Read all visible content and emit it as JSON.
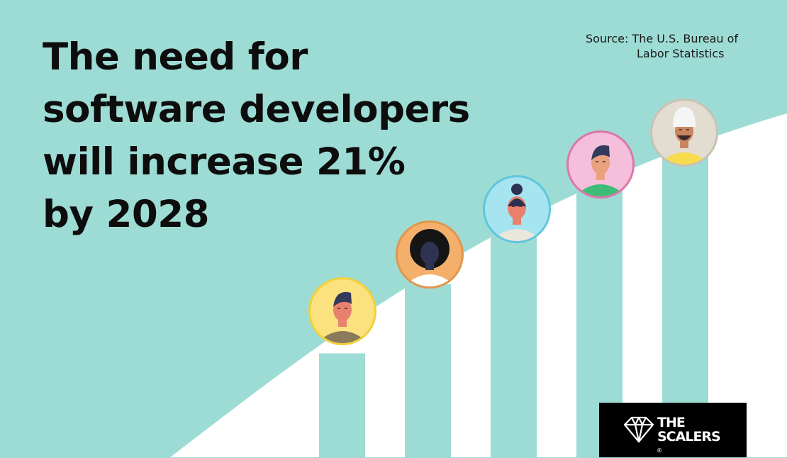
{
  "headline": {
    "lines": [
      "The need for",
      "software developers",
      "will increase 21%",
      "by 2028"
    ]
  },
  "source": {
    "lines": [
      "Source: The U.S. Bureau of",
      "Labor Statistics"
    ]
  },
  "logo": {
    "lines": [
      "THE",
      "SCALERS"
    ],
    "mark": "®"
  },
  "colors": {
    "background": "#9ddcd4",
    "curve_fill": "#ffffff",
    "bar": "#9ddcd4",
    "text": "#0d0d0d",
    "logo_bg": "#000000"
  },
  "chart_data": {
    "type": "bar",
    "categories": [
      "",
      "",
      "",
      "",
      ""
    ],
    "values": [
      18,
      30,
      39,
      50,
      62
    ],
    "ylim": [
      0,
      70
    ],
    "grid": false,
    "legend": "none",
    "avatar_icons": [
      "developer-man-icon",
      "developer-woman-afro-icon",
      "developer-woman-bun-icon",
      "developer-man-icon",
      "developer-man-turban-icon"
    ]
  }
}
